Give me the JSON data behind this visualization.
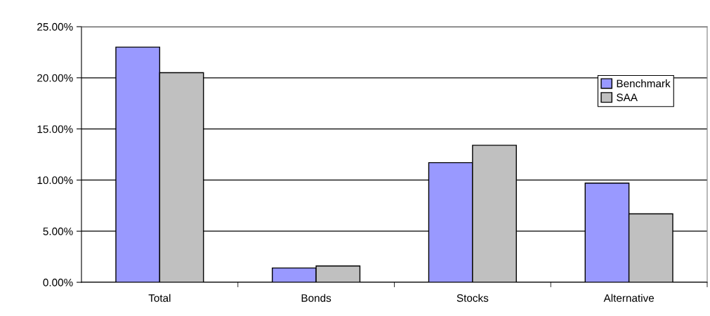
{
  "chart_data": {
    "type": "bar",
    "categories": [
      "Total",
      "Bonds",
      "Stocks",
      "Alternative"
    ],
    "series": [
      {
        "name": "Benchmark",
        "color": "#9999ff",
        "values": [
          23.0,
          1.4,
          11.7,
          9.7
        ]
      },
      {
        "name": "SAA",
        "color": "#c0c0c0",
        "values": [
          20.5,
          1.6,
          13.4,
          6.7
        ]
      }
    ],
    "ylim": [
      0,
      25
    ],
    "yticks": [
      {
        "value": 0,
        "label": "0.00%"
      },
      {
        "value": 5,
        "label": "5.00%"
      },
      {
        "value": 10,
        "label": "10.00%"
      },
      {
        "value": 15,
        "label": "15.00%"
      },
      {
        "value": 20,
        "label": "20.00%"
      },
      {
        "value": 25,
        "label": "25.00%"
      }
    ],
    "grid": "y",
    "legend": "top right"
  }
}
